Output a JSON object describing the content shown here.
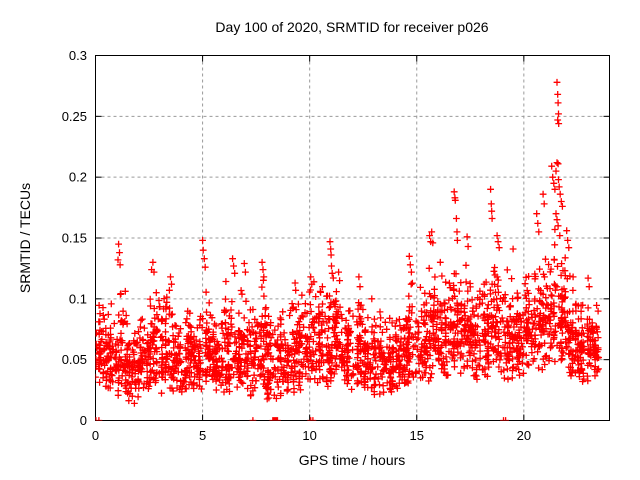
{
  "colors": {
    "background": "#ffffff",
    "frame": "#000000",
    "grid": "#9a9a9a",
    "marker": "#ff0000",
    "text": "#000000"
  },
  "chart_data": {
    "type": "scatter",
    "title": "Day 100 of 2020, SRMTID for receiver p026",
    "xlabel": "GPS time / hours",
    "ylabel": "SRMTID / TECUs",
    "xlim": [
      0,
      24
    ],
    "ylim": [
      0,
      0.3
    ],
    "xticks": [
      0,
      5,
      10,
      15,
      20
    ],
    "xtick_labels": [
      "0",
      "5",
      "10",
      "15",
      "20"
    ],
    "yticks": [
      0,
      0.05,
      0.1,
      0.15,
      0.2,
      0.25,
      0.3
    ],
    "ytick_labels": [
      "0",
      "0.05",
      "0.1",
      "0.15",
      "0.2",
      "0.25",
      "0.3"
    ],
    "grid": true,
    "legend": null,
    "marker": {
      "glyph": "plus",
      "color": "#ff0000",
      "size": 7
    },
    "seed": 11,
    "zero_points": [
      0.02,
      0.16,
      7.35,
      8.28,
      8.33,
      8.38,
      8.42,
      8.46,
      8.5,
      10.05,
      10.15,
      19.05,
      19.15
    ],
    "outliers": [
      [
        1.05,
        0.132
      ],
      [
        1.08,
        0.145
      ],
      [
        1.12,
        0.138
      ],
      [
        1.15,
        0.128
      ],
      [
        2.62,
        0.124
      ],
      [
        2.68,
        0.13
      ],
      [
        2.73,
        0.122
      ],
      [
        3.45,
        0.107
      ],
      [
        3.5,
        0.118
      ],
      [
        3.55,
        0.112
      ],
      [
        5.0,
        0.148
      ],
      [
        5.03,
        0.14
      ],
      [
        5.08,
        0.133
      ],
      [
        5.12,
        0.126
      ],
      [
        6.4,
        0.133
      ],
      [
        6.45,
        0.127
      ],
      [
        6.5,
        0.121
      ],
      [
        6.95,
        0.129
      ],
      [
        7.0,
        0.122
      ],
      [
        7.78,
        0.13
      ],
      [
        7.82,
        0.124
      ],
      [
        7.86,
        0.118
      ],
      [
        9.32,
        0.113
      ],
      [
        9.35,
        0.107
      ],
      [
        10.05,
        0.118
      ],
      [
        10.1,
        0.112
      ],
      [
        10.2,
        0.114
      ],
      [
        10.95,
        0.147
      ],
      [
        10.98,
        0.141
      ],
      [
        11.0,
        0.136
      ],
      [
        11.02,
        0.127
      ],
      [
        11.05,
        0.121
      ],
      [
        11.35,
        0.122
      ],
      [
        11.4,
        0.115
      ],
      [
        12.3,
        0.118
      ],
      [
        12.35,
        0.11
      ],
      [
        12.9,
        0.1
      ],
      [
        14.65,
        0.135
      ],
      [
        14.7,
        0.128
      ],
      [
        14.75,
        0.122
      ],
      [
        15.6,
        0.152
      ],
      [
        15.65,
        0.147
      ],
      [
        15.7,
        0.155
      ],
      [
        15.75,
        0.146
      ],
      [
        16.1,
        0.13
      ],
      [
        16.75,
        0.188
      ],
      [
        16.78,
        0.183
      ],
      [
        16.8,
        0.181
      ],
      [
        16.85,
        0.166
      ],
      [
        16.88,
        0.155
      ],
      [
        16.9,
        0.148
      ],
      [
        17.35,
        0.151
      ],
      [
        17.4,
        0.143
      ],
      [
        18.45,
        0.19
      ],
      [
        18.48,
        0.178
      ],
      [
        18.5,
        0.172
      ],
      [
        18.52,
        0.166
      ],
      [
        18.75,
        0.152
      ],
      [
        18.8,
        0.147
      ],
      [
        18.85,
        0.142
      ],
      [
        19.5,
        0.141
      ],
      [
        20.6,
        0.17
      ],
      [
        20.65,
        0.162
      ],
      [
        20.7,
        0.155
      ],
      [
        20.9,
        0.186
      ],
      [
        20.95,
        0.178
      ],
      [
        21.3,
        0.209
      ],
      [
        21.35,
        0.2
      ],
      [
        21.4,
        0.195
      ],
      [
        21.45,
        0.19
      ],
      [
        21.5,
        0.205
      ],
      [
        21.55,
        0.212
      ],
      [
        21.6,
        0.211
      ],
      [
        21.62,
        0.198
      ],
      [
        21.65,
        0.192
      ],
      [
        21.7,
        0.186
      ],
      [
        21.75,
        0.18
      ],
      [
        21.8,
        0.176
      ],
      [
        21.5,
        0.17
      ],
      [
        21.55,
        0.165
      ],
      [
        21.6,
        0.16
      ],
      [
        21.45,
        0.157
      ],
      [
        21.68,
        0.152
      ],
      [
        21.55,
        0.278
      ],
      [
        21.58,
        0.268
      ],
      [
        21.6,
        0.261
      ],
      [
        21.62,
        0.252
      ],
      [
        21.58,
        0.247
      ],
      [
        21.63,
        0.244
      ],
      [
        22.0,
        0.156
      ],
      [
        22.05,
        0.148
      ],
      [
        22.1,
        0.142
      ],
      [
        22.3,
        0.118
      ],
      [
        23.0,
        0.117
      ],
      [
        23.05,
        0.11
      ]
    ],
    "bands": [
      [
        0.0,
        0.5,
        55,
        0.03,
        0.105
      ],
      [
        0.5,
        1.0,
        55,
        0.025,
        0.1
      ],
      [
        1.0,
        1.5,
        55,
        0.02,
        0.125
      ],
      [
        1.5,
        2.0,
        55,
        0.012,
        0.09
      ],
      [
        2.0,
        2.5,
        55,
        0.02,
        0.09
      ],
      [
        2.5,
        3.0,
        55,
        0.025,
        0.12
      ],
      [
        3.0,
        3.5,
        55,
        0.02,
        0.11
      ],
      [
        3.5,
        4.0,
        55,
        0.02,
        0.095
      ],
      [
        4.0,
        4.5,
        55,
        0.02,
        0.1
      ],
      [
        4.5,
        5.0,
        55,
        0.02,
        0.09
      ],
      [
        5.0,
        5.5,
        55,
        0.025,
        0.11
      ],
      [
        5.5,
        6.0,
        55,
        0.02,
        0.09
      ],
      [
        6.0,
        6.5,
        55,
        0.02,
        0.12
      ],
      [
        6.5,
        7.0,
        55,
        0.025,
        0.115
      ],
      [
        7.0,
        7.5,
        55,
        0.02,
        0.1
      ],
      [
        7.5,
        8.0,
        55,
        0.025,
        0.12
      ],
      [
        8.0,
        8.5,
        55,
        0.015,
        0.09
      ],
      [
        8.5,
        9.0,
        55,
        0.02,
        0.09
      ],
      [
        9.0,
        9.5,
        55,
        0.02,
        0.105
      ],
      [
        9.5,
        10.0,
        55,
        0.025,
        0.11
      ],
      [
        10.0,
        10.5,
        55,
        0.03,
        0.115
      ],
      [
        10.5,
        11.0,
        55,
        0.025,
        0.12
      ],
      [
        11.0,
        11.5,
        55,
        0.03,
        0.125
      ],
      [
        11.5,
        12.0,
        55,
        0.025,
        0.1
      ],
      [
        12.0,
        12.5,
        55,
        0.025,
        0.105
      ],
      [
        12.5,
        13.0,
        55,
        0.02,
        0.1
      ],
      [
        13.0,
        13.5,
        50,
        0.02,
        0.095
      ],
      [
        13.5,
        14.0,
        50,
        0.02,
        0.09
      ],
      [
        14.0,
        14.5,
        55,
        0.025,
        0.105
      ],
      [
        14.5,
        15.0,
        55,
        0.03,
        0.12
      ],
      [
        15.0,
        15.5,
        55,
        0.03,
        0.115
      ],
      [
        15.5,
        16.0,
        55,
        0.03,
        0.14
      ],
      [
        16.0,
        16.5,
        55,
        0.03,
        0.125
      ],
      [
        16.5,
        17.0,
        55,
        0.035,
        0.14
      ],
      [
        17.0,
        17.5,
        55,
        0.035,
        0.135
      ],
      [
        17.5,
        18.0,
        55,
        0.03,
        0.12
      ],
      [
        18.0,
        18.5,
        55,
        0.03,
        0.13
      ],
      [
        18.5,
        19.0,
        55,
        0.035,
        0.14
      ],
      [
        19.0,
        19.5,
        55,
        0.03,
        0.125
      ],
      [
        19.5,
        20.0,
        55,
        0.035,
        0.12
      ],
      [
        20.0,
        20.5,
        55,
        0.04,
        0.13
      ],
      [
        20.5,
        21.0,
        55,
        0.04,
        0.145
      ],
      [
        21.0,
        21.5,
        55,
        0.045,
        0.15
      ],
      [
        21.5,
        22.0,
        55,
        0.04,
        0.14
      ],
      [
        22.0,
        22.5,
        55,
        0.035,
        0.12
      ],
      [
        22.5,
        23.0,
        60,
        0.03,
        0.105
      ],
      [
        23.0,
        23.5,
        60,
        0.035,
        0.1
      ]
    ]
  }
}
